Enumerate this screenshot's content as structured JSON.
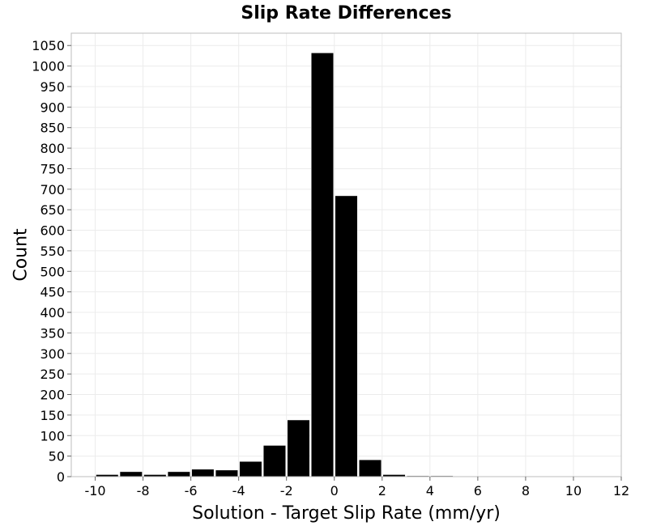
{
  "chart_data": {
    "type": "bar",
    "title": "Slip Rate Differences",
    "xlabel": "Solution - Target Slip Rate (mm/yr)",
    "ylabel": "Count",
    "xlim": [
      -11,
      12
    ],
    "ylim": [
      0,
      1080
    ],
    "x_ticks": [
      -10,
      -8,
      -6,
      -4,
      -2,
      0,
      2,
      4,
      6,
      8,
      10,
      12
    ],
    "y_ticks": [
      0,
      50,
      100,
      150,
      200,
      250,
      300,
      350,
      400,
      450,
      500,
      550,
      600,
      650,
      700,
      750,
      800,
      850,
      900,
      950,
      1000,
      1050
    ],
    "bin_width": 1,
    "grid": true,
    "bar_color": "#000000",
    "bins": [
      {
        "center": -9.5,
        "value": 5
      },
      {
        "center": -8.5,
        "value": 12
      },
      {
        "center": -7.5,
        "value": 5
      },
      {
        "center": -6.5,
        "value": 12
      },
      {
        "center": -5.5,
        "value": 18
      },
      {
        "center": -4.5,
        "value": 16
      },
      {
        "center": -3.5,
        "value": 37
      },
      {
        "center": -2.5,
        "value": 76
      },
      {
        "center": -1.5,
        "value": 138
      },
      {
        "center": -0.5,
        "value": 1032
      },
      {
        "center": 0.5,
        "value": 684
      },
      {
        "center": 1.5,
        "value": 41
      },
      {
        "center": 2.5,
        "value": 5
      },
      {
        "center": 3.5,
        "value": 2
      },
      {
        "center": 4.5,
        "value": 2
      }
    ]
  }
}
